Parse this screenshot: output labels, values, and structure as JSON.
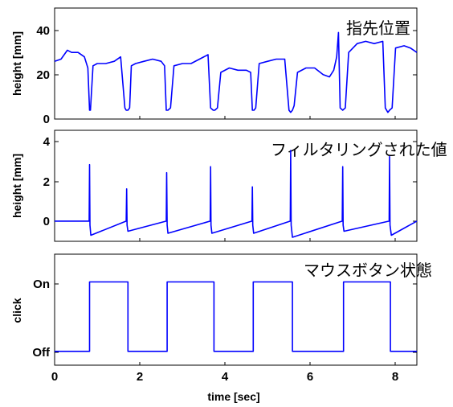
{
  "chart_data": [
    {
      "type": "line",
      "ylabel": "height [mm]",
      "annotation": "指先位置",
      "ylim": [
        0,
        50
      ],
      "yticks": [
        0,
        20,
        40
      ],
      "ytick_labels": [
        "0",
        "20",
        "40"
      ],
      "xlim": [
        0,
        8.5
      ],
      "series": [
        {
          "x": [
            0,
            0.15,
            0.3,
            0.4,
            0.55,
            0.7,
            0.78,
            0.82,
            0.84,
            0.9,
            1.0,
            1.2,
            1.4,
            1.55,
            1.65,
            1.68,
            1.72,
            1.76,
            1.8,
            1.9,
            2.1,
            2.3,
            2.5,
            2.58,
            2.62,
            2.66,
            2.72,
            2.8,
            3.0,
            3.2,
            3.4,
            3.6,
            3.66,
            3.72,
            3.76,
            3.82,
            3.9,
            4.1,
            4.3,
            4.5,
            4.6,
            4.64,
            4.68,
            4.72,
            4.8,
            5.0,
            5.2,
            5.4,
            5.5,
            5.54,
            5.58,
            5.62,
            5.7,
            5.9,
            6.1,
            6.3,
            6.45,
            6.55,
            6.62,
            6.66,
            6.7,
            6.76,
            6.82,
            6.9,
            7.1,
            7.3,
            7.5,
            7.7,
            7.76,
            7.82,
            7.86,
            7.92,
            8.0,
            8.2,
            8.35,
            8.5
          ],
          "y": [
            26,
            27,
            31,
            30,
            30,
            28,
            23,
            4,
            4,
            24,
            25,
            25,
            26,
            28,
            5,
            4,
            4,
            5,
            24,
            25,
            26,
            27,
            26,
            24,
            4,
            4,
            5,
            24,
            25,
            25,
            27,
            29,
            5,
            4,
            4,
            5,
            21,
            23,
            22,
            22,
            21,
            4,
            4,
            5,
            25,
            26,
            27,
            27,
            4,
            3,
            4,
            6,
            21,
            23,
            23,
            20,
            19,
            22,
            28,
            39,
            5,
            4,
            5,
            30,
            34,
            35,
            34,
            35,
            5,
            3,
            4,
            5,
            32,
            33,
            32,
            30
          ],
          "color": "#0000ff"
        }
      ]
    },
    {
      "type": "line",
      "ylabel": "height [mm]",
      "annotation": "フィルタリングされた値",
      "ylim": [
        -1,
        4.5
      ],
      "yticks": [
        0,
        2,
        4
      ],
      "ytick_labels": [
        "0",
        "2",
        "4"
      ],
      "xlim": [
        0,
        8.5
      ],
      "series": [
        {
          "x": [
            0,
            0.81,
            0.82,
            0.83,
            0.85,
            1.68,
            1.69,
            1.7,
            1.72,
            2.62,
            2.63,
            2.64,
            2.66,
            3.65,
            3.66,
            3.67,
            3.69,
            4.63,
            4.64,
            4.65,
            4.67,
            5.53,
            5.54,
            5.55,
            5.58,
            6.75,
            6.76,
            6.77,
            6.79,
            7.85,
            7.86,
            7.87,
            7.9,
            8.5
          ],
          "y": [
            0,
            0,
            2.8,
            -0.2,
            -0.7,
            0,
            1.6,
            -0.2,
            -0.5,
            0,
            2.4,
            -0.2,
            -0.6,
            0,
            2.7,
            -0.2,
            -0.6,
            0,
            1.7,
            -0.2,
            -0.6,
            0,
            3.5,
            -0.2,
            -0.8,
            0,
            2.7,
            -0.2,
            -0.5,
            0,
            3.2,
            -0.2,
            -0.7,
            0
          ],
          "color": "#0000ff"
        }
      ]
    },
    {
      "type": "line",
      "ylabel": "click",
      "annotation": "マウスボタン状態",
      "ylim": [
        -0.2,
        1.4
      ],
      "yticks": [
        0,
        1
      ],
      "ytick_labels": [
        "Off",
        "On"
      ],
      "xlim": [
        0,
        8.5
      ],
      "xlabel": "time [sec]",
      "xticks": [
        0,
        2,
        4,
        6,
        8
      ],
      "xtick_labels": [
        "0",
        "2",
        "4",
        "6",
        "8"
      ],
      "series": [
        {
          "x": [
            0,
            0.82,
            0.82,
            1.72,
            1.72,
            2.64,
            2.64,
            3.74,
            3.74,
            4.66,
            4.66,
            5.58,
            5.58,
            6.78,
            6.78,
            7.88,
            7.88,
            8.5
          ],
          "y": [
            0,
            0,
            1,
            1,
            0,
            0,
            1,
            1,
            0,
            0,
            1,
            1,
            0,
            0,
            1,
            1,
            0,
            0
          ],
          "color": "#0000ff"
        }
      ]
    }
  ]
}
